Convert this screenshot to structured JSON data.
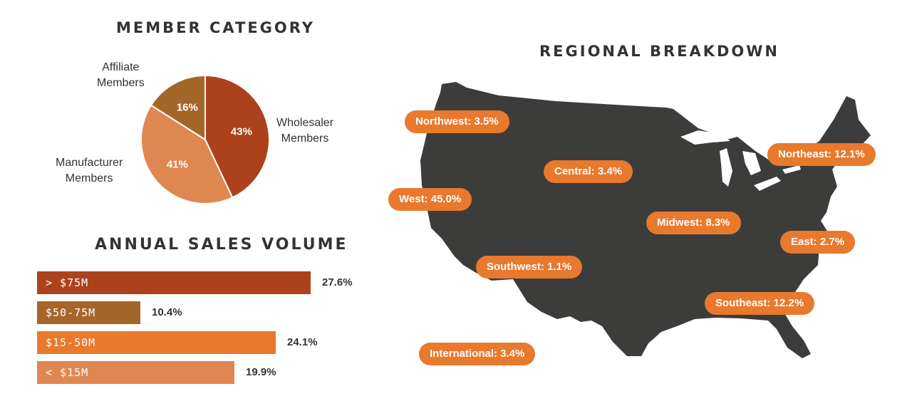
{
  "chart_data": [
    {
      "type": "pie",
      "title": "MEMBER CATEGORY",
      "slices": [
        {
          "label": "Wholesaler Members",
          "line1": "Wholesaler",
          "line2": "Members",
          "value": 43,
          "display": "43%",
          "color": "#ac421c"
        },
        {
          "label": "Manufacturer Members",
          "line1": "Manufacturer",
          "line2": "Members",
          "value": 41,
          "display": "41%",
          "color": "#df8751"
        },
        {
          "label": "Affiliate Members",
          "line1": "Affiliate",
          "line2": "Members",
          "value": 16,
          "display": "16%",
          "color": "#a5662a"
        }
      ]
    },
    {
      "type": "bar",
      "title": "ANNUAL SALES VOLUME",
      "orientation": "horizontal",
      "bars": [
        {
          "category": "> $75M",
          "value": 27.6,
          "display": "27.6%",
          "color": "#ac421c"
        },
        {
          "category": "$50-75M",
          "value": 10.4,
          "display": "10.4%",
          "color": "#a5662a"
        },
        {
          "category": "$15-50M",
          "value": 24.1,
          "display": "24.1%",
          "color": "#e8792d"
        },
        {
          "category": "< $15M",
          "value": 19.9,
          "display": "19.9%",
          "color": "#df8751"
        }
      ]
    },
    {
      "type": "map",
      "title": "REGIONAL BREAKDOWN",
      "map_color": "#3c3c3b",
      "pill_color": "#e8792d",
      "regions": [
        {
          "name": "Northwest",
          "value": 3.5,
          "text": "Northwest: 3.5%"
        },
        {
          "name": "Central",
          "value": 3.4,
          "text": "Central: 3.4%"
        },
        {
          "name": "West",
          "value": 45.0,
          "text": "West: 45.0%"
        },
        {
          "name": "Northeast",
          "value": 12.1,
          "text": "Northeast: 12.1%"
        },
        {
          "name": "Midwest",
          "value": 8.3,
          "text": "Midwest: 8.3%"
        },
        {
          "name": "East",
          "value": 2.7,
          "text": "East: 2.7%"
        },
        {
          "name": "Southwest",
          "value": 1.1,
          "text": "Southwest: 1.1%"
        },
        {
          "name": "Southeast",
          "value": 12.2,
          "text": "Southeast: 12.2%"
        },
        {
          "name": "International",
          "value": 3.4,
          "text": "International: 3.4%"
        }
      ]
    }
  ]
}
